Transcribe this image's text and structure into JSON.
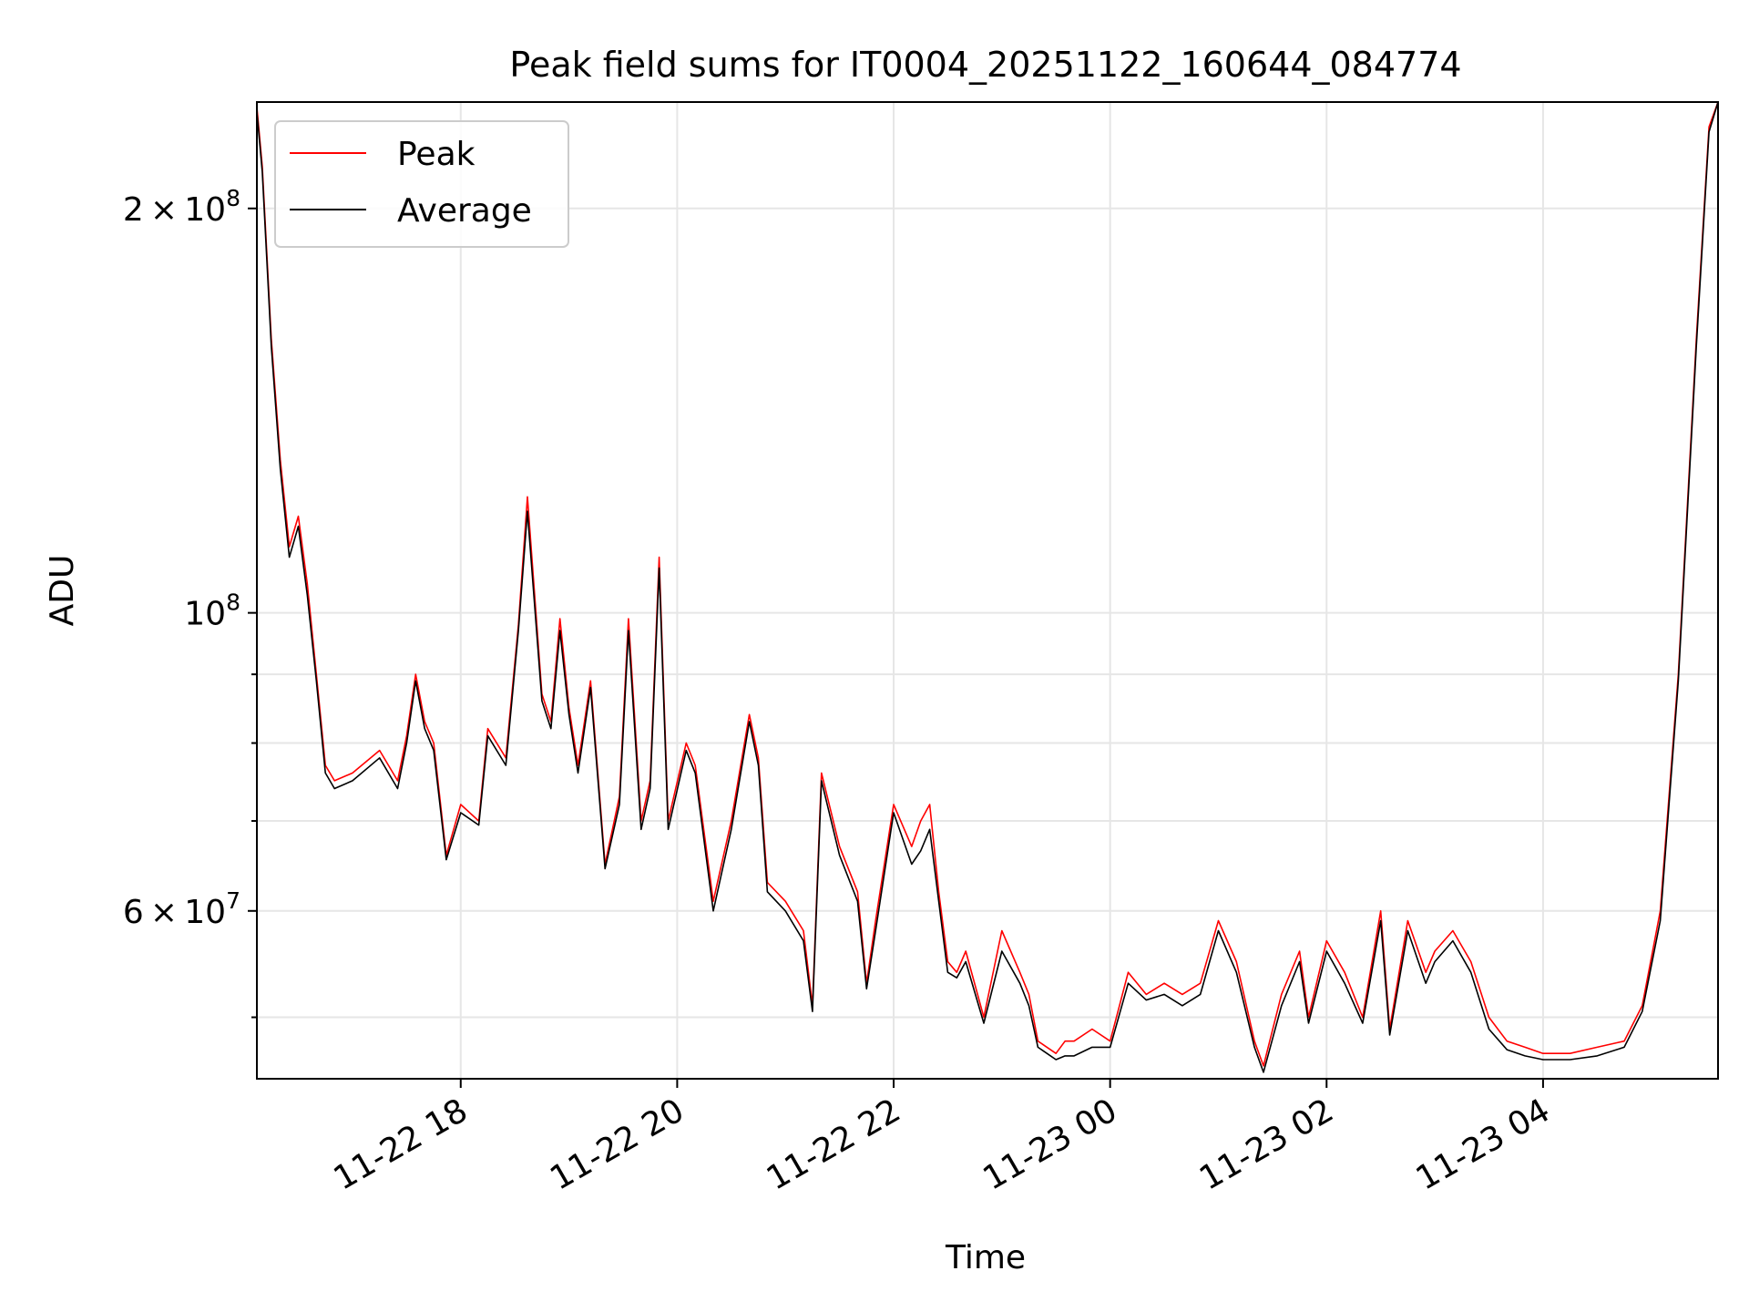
{
  "chart_data": {
    "type": "line",
    "title": "Peak field sums for IT0004_20251122_160644_084774",
    "xlabel": "Time",
    "ylabel": "ADU",
    "yscale": "log",
    "grid": true,
    "legend_position": "top-left",
    "xlim": [
      "2025-11-22 16:07",
      "2025-11-23 05:37"
    ],
    "ylim": [
      45000000,
      240000000
    ],
    "x_ticks": [
      "11-22 18",
      "11-22 20",
      "11-22 22",
      "11-23 00",
      "11-23 02",
      "11-23 04"
    ],
    "x_tick_values": [
      "2025-11-22 18:00",
      "2025-11-22 20:00",
      "2025-11-22 22:00",
      "2025-11-23 00:00",
      "2025-11-23 02:00",
      "2025-11-23 04:00"
    ],
    "y_major_ticks": [
      {
        "value": 200000000,
        "mantissa": "2",
        "exp": "8"
      },
      {
        "value": 100000000,
        "mantissa": "",
        "exp": "8"
      },
      {
        "value": 60000000,
        "mantissa": "6",
        "exp": "7"
      }
    ],
    "y_minor_ticks": [
      50000000,
      70000000,
      80000000,
      90000000,
      300000000
    ],
    "series": [
      {
        "name": "Peak",
        "color": "#ff0000",
        "x": [
          "2025-11-22 16:07",
          "2025-11-22 16:10",
          "2025-11-22 16:15",
          "2025-11-22 16:20",
          "2025-11-22 16:25",
          "2025-11-22 16:30",
          "2025-11-22 16:35",
          "2025-11-22 16:40",
          "2025-11-22 16:45",
          "2025-11-22 16:50",
          "2025-11-22 17:00",
          "2025-11-22 17:15",
          "2025-11-22 17:25",
          "2025-11-22 17:30",
          "2025-11-22 17:35",
          "2025-11-22 17:40",
          "2025-11-22 17:45",
          "2025-11-22 17:52",
          "2025-11-22 18:00",
          "2025-11-22 18:10",
          "2025-11-22 18:15",
          "2025-11-22 18:25",
          "2025-11-22 18:32",
          "2025-11-22 18:37",
          "2025-11-22 18:45",
          "2025-11-22 18:50",
          "2025-11-22 18:55",
          "2025-11-22 19:00",
          "2025-11-22 19:05",
          "2025-11-22 19:12",
          "2025-11-22 19:20",
          "2025-11-22 19:28",
          "2025-11-22 19:33",
          "2025-11-22 19:40",
          "2025-11-22 19:45",
          "2025-11-22 19:50",
          "2025-11-22 19:55",
          "2025-11-22 20:05",
          "2025-11-22 20:10",
          "2025-11-22 20:20",
          "2025-11-22 20:30",
          "2025-11-22 20:40",
          "2025-11-22 20:45",
          "2025-11-22 20:50",
          "2025-11-22 21:00",
          "2025-11-22 21:10",
          "2025-11-22 21:15",
          "2025-11-22 21:20",
          "2025-11-22 21:30",
          "2025-11-22 21:40",
          "2025-11-22 21:45",
          "2025-11-22 21:50",
          "2025-11-22 22:00",
          "2025-11-22 22:10",
          "2025-11-22 22:15",
          "2025-11-22 22:20",
          "2025-11-22 22:25",
          "2025-11-22 22:30",
          "2025-11-22 22:35",
          "2025-11-22 22:40",
          "2025-11-22 22:50",
          "2025-11-22 23:00",
          "2025-11-22 23:10",
          "2025-11-22 23:15",
          "2025-11-22 23:20",
          "2025-11-22 23:25",
          "2025-11-22 23:30",
          "2025-11-22 23:35",
          "2025-11-22 23:40",
          "2025-11-22 23:50",
          "2025-11-23 00:00",
          "2025-11-23 00:10",
          "2025-11-23 00:20",
          "2025-11-23 00:30",
          "2025-11-23 00:40",
          "2025-11-23 00:50",
          "2025-11-23 01:00",
          "2025-11-23 01:10",
          "2025-11-23 01:20",
          "2025-11-23 01:25",
          "2025-11-23 01:35",
          "2025-11-23 01:45",
          "2025-11-23 01:50",
          "2025-11-23 02:00",
          "2025-11-23 02:10",
          "2025-11-23 02:20",
          "2025-11-23 02:30",
          "2025-11-23 02:35",
          "2025-11-23 02:45",
          "2025-11-23 02:55",
          "2025-11-23 03:00",
          "2025-11-23 03:10",
          "2025-11-23 03:20",
          "2025-11-23 03:30",
          "2025-11-23 03:40",
          "2025-11-23 03:50",
          "2025-11-23 04:00",
          "2025-11-23 04:15",
          "2025-11-23 04:30",
          "2025-11-23 04:45",
          "2025-11-23 04:55",
          "2025-11-23 05:05",
          "2025-11-23 05:15",
          "2025-11-23 05:25",
          "2025-11-23 05:32",
          "2025-11-23 05:37"
        ],
        "values": [
          238000000,
          215000000,
          160000000,
          130000000,
          112000000,
          118000000,
          105000000,
          90000000,
          77000000,
          75000000,
          76000000,
          79000000,
          75000000,
          81000000,
          90000000,
          83000000,
          80000000,
          66000000,
          72000000,
          70000000,
          82000000,
          78000000,
          98000000,
          122000000,
          87000000,
          83000000,
          99000000,
          85000000,
          77000000,
          89000000,
          65000000,
          73000000,
          99000000,
          70000000,
          75000000,
          110000000,
          70000000,
          80000000,
          77000000,
          61000000,
          70000000,
          84000000,
          78000000,
          63000000,
          61000000,
          58000000,
          51000000,
          76000000,
          67000000,
          62000000,
          53000000,
          59000000,
          72000000,
          67000000,
          70000000,
          72000000,
          62000000,
          55000000,
          54000000,
          56000000,
          50000000,
          58000000,
          54000000,
          52000000,
          48000000,
          47500000,
          47000000,
          48000000,
          48000000,
          49000000,
          48000000,
          54000000,
          52000000,
          53000000,
          52000000,
          53000000,
          59000000,
          55000000,
          48000000,
          46000000,
          52000000,
          56000000,
          50000000,
          57000000,
          54000000,
          50000000,
          60000000,
          49000000,
          59000000,
          54000000,
          56000000,
          58000000,
          55000000,
          50000000,
          48000000,
          47500000,
          47000000,
          47000000,
          47500000,
          48000000,
          51000000,
          60000000,
          90000000,
          160000000,
          230000000,
          240000000
        ]
      },
      {
        "name": "Average",
        "color": "#000000",
        "x": [
          "2025-11-22 16:07",
          "2025-11-22 16:10",
          "2025-11-22 16:15",
          "2025-11-22 16:20",
          "2025-11-22 16:25",
          "2025-11-22 16:30",
          "2025-11-22 16:35",
          "2025-11-22 16:40",
          "2025-11-22 16:45",
          "2025-11-22 16:50",
          "2025-11-22 17:00",
          "2025-11-22 17:15",
          "2025-11-22 17:25",
          "2025-11-22 17:30",
          "2025-11-22 17:35",
          "2025-11-22 17:40",
          "2025-11-22 17:45",
          "2025-11-22 17:52",
          "2025-11-22 18:00",
          "2025-11-22 18:10",
          "2025-11-22 18:15",
          "2025-11-22 18:25",
          "2025-11-22 18:32",
          "2025-11-22 18:37",
          "2025-11-22 18:45",
          "2025-11-22 18:50",
          "2025-11-22 18:55",
          "2025-11-22 19:00",
          "2025-11-22 19:05",
          "2025-11-22 19:12",
          "2025-11-22 19:20",
          "2025-11-22 19:28",
          "2025-11-22 19:33",
          "2025-11-22 19:40",
          "2025-11-22 19:45",
          "2025-11-22 19:50",
          "2025-11-22 19:55",
          "2025-11-22 20:05",
          "2025-11-22 20:10",
          "2025-11-22 20:20",
          "2025-11-22 20:30",
          "2025-11-22 20:40",
          "2025-11-22 20:45",
          "2025-11-22 20:50",
          "2025-11-22 21:00",
          "2025-11-22 21:10",
          "2025-11-22 21:15",
          "2025-11-22 21:20",
          "2025-11-22 21:30",
          "2025-11-22 21:40",
          "2025-11-22 21:45",
          "2025-11-22 21:50",
          "2025-11-22 22:00",
          "2025-11-22 22:10",
          "2025-11-22 22:15",
          "2025-11-22 22:20",
          "2025-11-22 22:25",
          "2025-11-22 22:30",
          "2025-11-22 22:35",
          "2025-11-22 22:40",
          "2025-11-22 22:50",
          "2025-11-22 23:00",
          "2025-11-22 23:10",
          "2025-11-22 23:15",
          "2025-11-22 23:20",
          "2025-11-22 23:25",
          "2025-11-22 23:30",
          "2025-11-22 23:35",
          "2025-11-22 23:40",
          "2025-11-22 23:50",
          "2025-11-23 00:00",
          "2025-11-23 00:10",
          "2025-11-23 00:20",
          "2025-11-23 00:30",
          "2025-11-23 00:40",
          "2025-11-23 00:50",
          "2025-11-23 01:00",
          "2025-11-23 01:10",
          "2025-11-23 01:20",
          "2025-11-23 01:25",
          "2025-11-23 01:35",
          "2025-11-23 01:45",
          "2025-11-23 01:50",
          "2025-11-23 02:00",
          "2025-11-23 02:10",
          "2025-11-23 02:20",
          "2025-11-23 02:30",
          "2025-11-23 02:35",
          "2025-11-23 02:45",
          "2025-11-23 02:55",
          "2025-11-23 03:00",
          "2025-11-23 03:10",
          "2025-11-23 03:20",
          "2025-11-23 03:30",
          "2025-11-23 03:40",
          "2025-11-23 03:50",
          "2025-11-23 04:00",
          "2025-11-23 04:15",
          "2025-11-23 04:30",
          "2025-11-23 04:45",
          "2025-11-23 04:55",
          "2025-11-23 05:05",
          "2025-11-23 05:15",
          "2025-11-23 05:25",
          "2025-11-23 05:32",
          "2025-11-23 05:37"
        ],
        "values": [
          236000000,
          213000000,
          158000000,
          128000000,
          110000000,
          116000000,
          103000000,
          89000000,
          76000000,
          74000000,
          75000000,
          78000000,
          74000000,
          80000000,
          89000000,
          82000000,
          79000000,
          65500000,
          71000000,
          69500000,
          81000000,
          77000000,
          97000000,
          119000000,
          86000000,
          82000000,
          97000000,
          84000000,
          76000000,
          88000000,
          64500000,
          72000000,
          97000000,
          69000000,
          74000000,
          108000000,
          69000000,
          79000000,
          76000000,
          60000000,
          69000000,
          83000000,
          77000000,
          62000000,
          60000000,
          57000000,
          50500000,
          75000000,
          66000000,
          61000000,
          52500000,
          58000000,
          71000000,
          65000000,
          66500000,
          69000000,
          61000000,
          54000000,
          53500000,
          55000000,
          49500000,
          56000000,
          53000000,
          51000000,
          47500000,
          47000000,
          46500000,
          46800000,
          46800000,
          47500000,
          47500000,
          53000000,
          51500000,
          52000000,
          51000000,
          52000000,
          58000000,
          54000000,
          47500000,
          45500000,
          51000000,
          55000000,
          49500000,
          56000000,
          53000000,
          49500000,
          59000000,
          48500000,
          58000000,
          53000000,
          55000000,
          57000000,
          54000000,
          49000000,
          47300000,
          46800000,
          46500000,
          46500000,
          46800000,
          47500000,
          50500000,
          59000000,
          89000000,
          158000000,
          228000000,
          240000000
        ]
      }
    ]
  }
}
